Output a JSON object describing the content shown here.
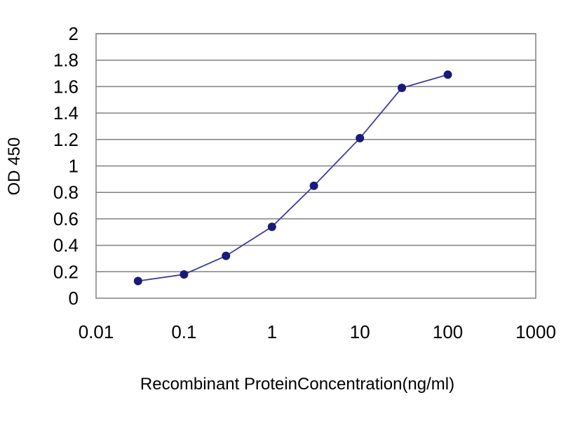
{
  "chart_data": {
    "type": "scatter",
    "title": "",
    "xlabel": "Recombinant ProteinConcentration(ng/ml)",
    "ylabel": "OD 450",
    "x_scale": "log",
    "xlim": [
      0.01,
      1000
    ],
    "ylim": [
      0,
      2
    ],
    "x_tick_labels": [
      "0.01",
      "0.1",
      "1",
      "10",
      "100",
      "1000"
    ],
    "y_tick_labels": [
      "0",
      "0.2",
      "0.4",
      "0.6",
      "0.8",
      "1",
      "1.2",
      "1.4",
      "1.6",
      "1.8",
      "2"
    ],
    "grid": "horizontal",
    "line_color": "#3b3b9a",
    "marker_color": "#1a1a7a",
    "series": [
      {
        "x": [
          0.03,
          0.1,
          0.3,
          1,
          3,
          10,
          30,
          100
        ],
        "y": [
          0.13,
          0.18,
          0.32,
          0.54,
          0.85,
          1.21,
          1.59,
          1.69
        ]
      }
    ]
  }
}
